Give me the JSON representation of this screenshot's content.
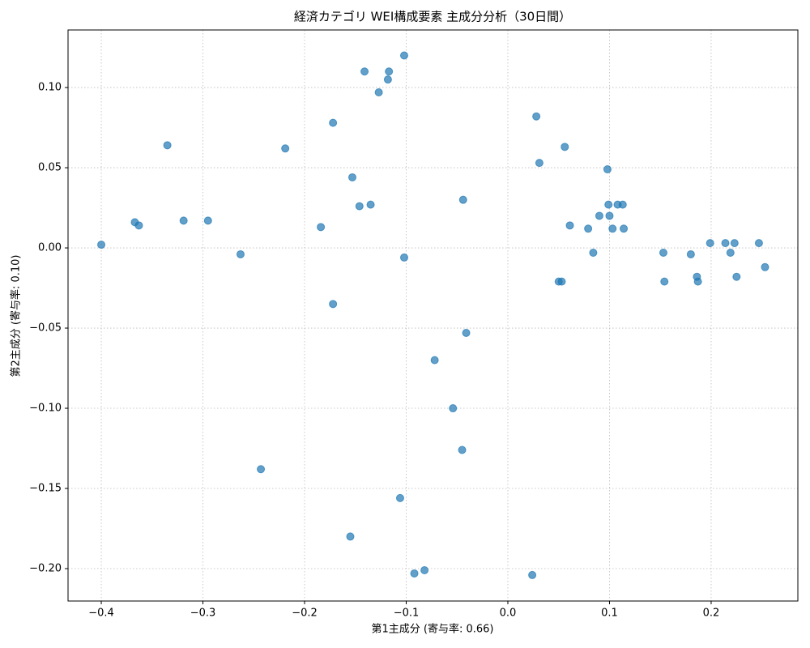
{
  "chart_data": {
    "type": "scatter",
    "title": "経済カテゴリ WEI構成要素 主成分分析（30日間）",
    "x_label": "第1主成分 (寄与率: 0.66)",
    "y_label": "第2主成分 (寄与率: 0.10)",
    "color": "#1f77b4",
    "grid": true,
    "xlim": [
      -0.4327,
      0.2853
    ],
    "ylim": [
      -0.2202,
      0.1359
    ],
    "xticks": [
      {
        "value": -0.4,
        "label": "−0.4"
      },
      {
        "value": -0.3,
        "label": "−0.3"
      },
      {
        "value": -0.2,
        "label": "−0.2"
      },
      {
        "value": -0.1,
        "label": "−0.1"
      },
      {
        "value": 0,
        "label": "0.0"
      },
      0.1,
      0.2
    ],
    "yticks": [
      {
        "value": -0.2,
        "label": "−0.20"
      },
      {
        "value": -0.15,
        "label": "−0.15"
      },
      {
        "value": -0.1,
        "label": "−0.10"
      },
      {
        "value": -0.05,
        "label": "−0.05"
      },
      {
        "value": 0,
        "label": "0.00"
      },
      {
        "value": 0.05,
        "label": "0.05"
      },
      {
        "value": 0.1,
        "label": "0.10"
      }
    ],
    "x": [
      -0.4,
      -0.367,
      -0.363,
      -0.335,
      -0.319,
      -0.295,
      -0.263,
      -0.243,
      -0.219,
      -0.184,
      -0.172,
      -0.172,
      -0.155,
      -0.153,
      -0.146,
      -0.141,
      -0.135,
      -0.127,
      -0.118,
      -0.117,
      -0.106,
      -0.102,
      -0.102,
      -0.092,
      -0.082,
      -0.072,
      -0.054,
      -0.045,
      -0.044,
      -0.041,
      0.024,
      0.028,
      0.031,
      0.05,
      0.053,
      0.056,
      0.061,
      0.079,
      0.084,
      0.09,
      0.098,
      0.099,
      0.1,
      0.103,
      0.108,
      0.113,
      0.114,
      0.153,
      0.154,
      0.18,
      0.186,
      0.187,
      0.199,
      0.214,
      0.219,
      0.223,
      0.225,
      0.247,
      0.253
    ],
    "values": [
      0.002,
      0.016,
      0.014,
      0.064,
      0.017,
      0.017,
      -0.004,
      -0.138,
      0.062,
      0.013,
      0.078,
      -0.035,
      -0.18,
      0.044,
      0.026,
      0.11,
      0.027,
      0.097,
      0.105,
      0.11,
      -0.156,
      0.12,
      -0.006,
      -0.203,
      -0.201,
      -0.07,
      -0.1,
      -0.126,
      0.03,
      -0.053,
      -0.204,
      0.082,
      0.053,
      -0.021,
      -0.021,
      0.063,
      0.014,
      0.012,
      -0.003,
      0.02,
      0.049,
      0.027,
      0.02,
      0.012,
      0.027,
      0.027,
      0.012,
      -0.003,
      -0.021,
      -0.004,
      -0.018,
      -0.021,
      0.003,
      0.003,
      -0.003,
      0.003,
      -0.018,
      0.003,
      -0.012
    ]
  }
}
